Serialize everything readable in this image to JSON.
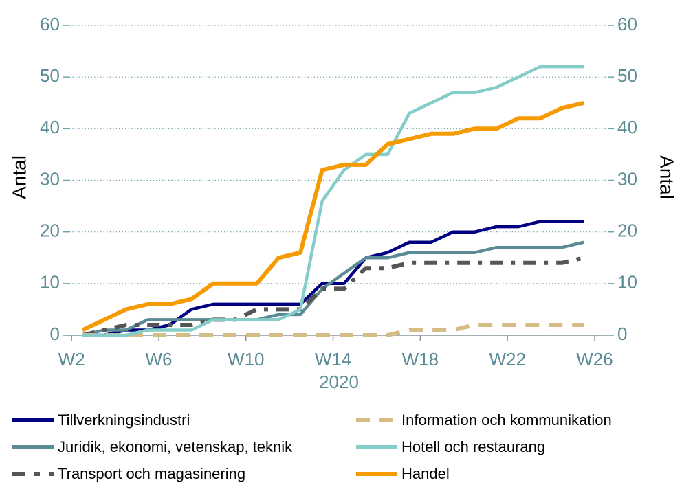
{
  "chart_data": {
    "type": "line",
    "x_label": "2020",
    "y_label": "Antal",
    "y2_label": "Antal",
    "x": [
      2.5,
      3.5,
      4.5,
      5.5,
      6.5,
      7.5,
      8.5,
      9.5,
      10.5,
      11.5,
      12.5,
      13.5,
      14.5,
      15.5,
      16.5,
      17.5,
      18.5,
      19.5,
      20.5,
      21.5,
      22.5,
      23.5,
      24.5,
      25.5
    ],
    "xlim": [
      1.9,
      26.6
    ],
    "xticks": [
      {
        "value": 2,
        "label": "W2"
      },
      {
        "value": 6,
        "label": "W6"
      },
      {
        "value": 10,
        "label": "W10"
      },
      {
        "value": 14,
        "label": "W14"
      },
      {
        "value": 18,
        "label": "W18"
      },
      {
        "value": 22,
        "label": "W22"
      },
      {
        "value": 26,
        "label": "W26"
      }
    ],
    "ylim": [
      0,
      60
    ],
    "yticks": [
      0,
      10,
      20,
      30,
      40,
      50,
      60
    ],
    "y2lim": [
      0,
      60
    ],
    "y2ticks": [
      0,
      10,
      20,
      30,
      40,
      50,
      60
    ],
    "grid": true,
    "series": [
      {
        "name": "Tillverkningsindustri",
        "color": "#000080",
        "style": "solid",
        "values": [
          0,
          0,
          1,
          1,
          2,
          5,
          6,
          6,
          6,
          6,
          6,
          10,
          10,
          15,
          16,
          18,
          18,
          20,
          20,
          21,
          21,
          22,
          22,
          22
        ]
      },
      {
        "name": "Juridik, ekonomi, vetenskap, teknik",
        "color": "#5b8c95",
        "style": "solid",
        "values": [
          0,
          1,
          1,
          3,
          3,
          3,
          3,
          3,
          3,
          4,
          4,
          9,
          12,
          15,
          15,
          16,
          16,
          16,
          16,
          17,
          17,
          17,
          17,
          18
        ]
      },
      {
        "name": "Transport och magasinering",
        "color": "#555555",
        "style": "dashdot",
        "values": [
          0,
          1,
          2,
          2,
          2,
          2,
          3,
          3,
          5,
          5,
          5,
          9,
          9,
          13,
          13,
          14,
          14,
          14,
          14,
          14,
          14,
          14,
          14,
          15
        ]
      },
      {
        "name": "Information och kommunikation",
        "color": "#d6bd85",
        "style": "dashed",
        "values": [
          0,
          0,
          0,
          0,
          0,
          0,
          0,
          0,
          0,
          0,
          0,
          0,
          0,
          0,
          0,
          1,
          1,
          1,
          2,
          2,
          2,
          2,
          2,
          2
        ]
      },
      {
        "name": "Hotell och restaurang",
        "color": "#85cdc9",
        "style": "solid",
        "values": [
          0,
          0,
          0,
          1,
          1,
          1,
          3,
          3,
          3,
          3,
          5,
          26,
          32,
          35,
          35,
          43,
          45,
          47,
          47,
          48,
          50,
          52,
          52,
          52
        ]
      },
      {
        "name": "Handel",
        "color": "#f59a00",
        "style": "solid",
        "values": [
          1,
          3,
          5,
          6,
          6,
          7,
          10,
          10,
          10,
          15,
          16,
          32,
          33,
          33,
          37,
          38,
          39,
          39,
          40,
          40,
          42,
          42,
          44,
          45
        ]
      }
    ]
  }
}
